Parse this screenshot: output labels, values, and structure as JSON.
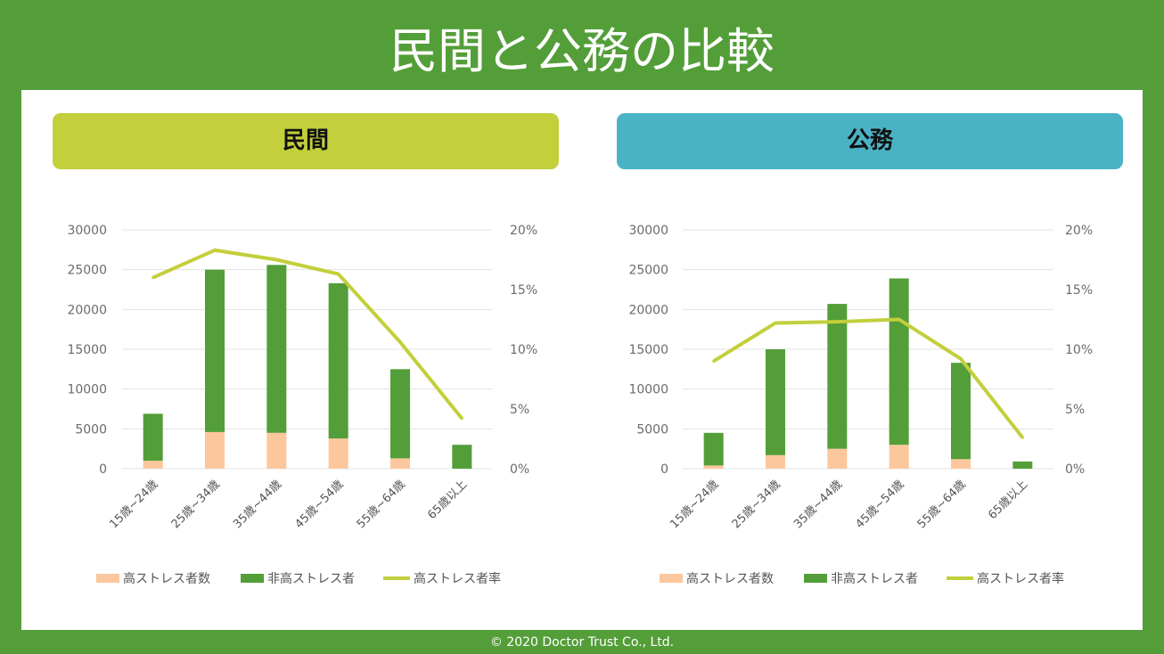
{
  "title": "民間と公務の比較",
  "footer": "© 2020 Doctor Trust Co., Ltd.",
  "colors": {
    "background": "#539e38",
    "high_stress": "#fcc79c",
    "non_high_stress": "#539e38",
    "rate_line": "#c3cf3b",
    "banner_private": "#c3cf3b",
    "banner_public": "#49b3c5"
  },
  "chart_data": [
    {
      "type": "bar",
      "stacked": true,
      "title": "民間",
      "categories": [
        "15歳~24歳",
        "25歳~34歳",
        "35歳~44歳",
        "45歳~54歳",
        "55歳~64歳",
        "65歳以上"
      ],
      "left_ticks": [
        "0",
        "5000",
        "10000",
        "15000",
        "20000",
        "25000",
        "30000"
      ],
      "right_ticks": [
        "0%",
        "5%",
        "10%",
        "15%",
        "20%"
      ],
      "ylim": [
        0,
        30000
      ],
      "y2lim": [
        0,
        20
      ],
      "grid": true,
      "legend_position": "bottom",
      "series": [
        {
          "name": "高ストレス者数",
          "kind": "bar",
          "values": [
            1000,
            4600,
            4500,
            3800,
            1300,
            0
          ]
        },
        {
          "name": "非高ストレス者",
          "kind": "bar",
          "values": [
            5900,
            20400,
            21100,
            19500,
            11200,
            3000
          ]
        },
        {
          "name": "高ストレス者率",
          "kind": "line",
          "axis": "right",
          "values": [
            16.0,
            18.3,
            17.5,
            16.3,
            10.6,
            4.2
          ]
        }
      ]
    },
    {
      "type": "bar",
      "stacked": true,
      "title": "公務",
      "categories": [
        "15歳~24歳",
        "25歳~34歳",
        "35歳~44歳",
        "45歳~54歳",
        "55歳~64歳",
        "65歳以上"
      ],
      "left_ticks": [
        "0",
        "5000",
        "10000",
        "15000",
        "20000",
        "25000",
        "30000"
      ],
      "right_ticks": [
        "0%",
        "5%",
        "10%",
        "15%",
        "20%"
      ],
      "ylim": [
        0,
        30000
      ],
      "y2lim": [
        0,
        20
      ],
      "grid": true,
      "legend_position": "bottom",
      "series": [
        {
          "name": "高ストレス者数",
          "kind": "bar",
          "values": [
            400,
            1700,
            2500,
            3000,
            1200,
            0
          ]
        },
        {
          "name": "非高ストレス者",
          "kind": "bar",
          "values": [
            4100,
            13300,
            18200,
            20900,
            12100,
            900
          ]
        },
        {
          "name": "高ストレス者率",
          "kind": "line",
          "axis": "right",
          "values": [
            9.0,
            12.2,
            12.3,
            12.5,
            9.2,
            2.6
          ]
        }
      ]
    }
  ]
}
